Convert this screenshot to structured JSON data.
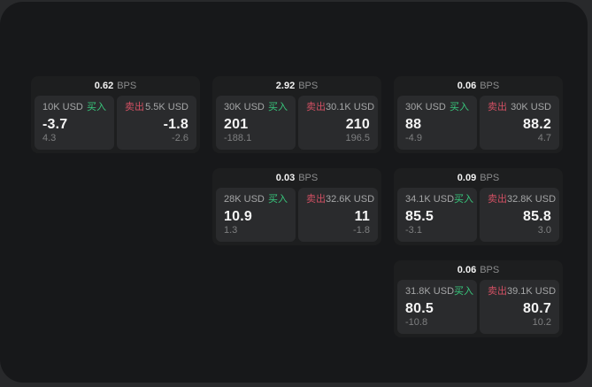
{
  "labels": {
    "bps": "BPS",
    "buy": "买入",
    "sell": "卖出"
  },
  "colors": {
    "page_background": "#28292b",
    "surface_background": "#17181a",
    "card_background": "#1d1e1f",
    "pane_background": "#2a2b2d",
    "buy_green": "#38c77c",
    "sell_red": "#d15063",
    "value_white": "#f4f4f4",
    "label_gray": "#a5a6a7",
    "delta_gray": "#7e7f80"
  },
  "cards": [
    {
      "col": 1,
      "row": 1,
      "bps": "0.62",
      "buy": {
        "amount": "10K USD",
        "value": "-3.7",
        "delta": "4.3"
      },
      "sell": {
        "amount": "5.5K USD",
        "value": "-1.8",
        "delta": "-2.6"
      }
    },
    {
      "col": 2,
      "row": 1,
      "bps": "2.92",
      "buy": {
        "amount": "30K USD",
        "value": "201",
        "delta": "-188.1"
      },
      "sell": {
        "amount": "30.1K USD",
        "value": "210",
        "delta": "196.5"
      }
    },
    {
      "col": 2,
      "row": 2,
      "bps": "0.03",
      "buy": {
        "amount": "28K USD",
        "value": "10.9",
        "delta": "1.3"
      },
      "sell": {
        "amount": "32.6K USD",
        "value": "11",
        "delta": "-1.8"
      }
    },
    {
      "col": 3,
      "row": 1,
      "bps": "0.06",
      "buy": {
        "amount": "30K USD",
        "value": "88",
        "delta": "-4.9"
      },
      "sell": {
        "amount": "30K USD",
        "value": "88.2",
        "delta": "4.7"
      }
    },
    {
      "col": 3,
      "row": 2,
      "bps": "0.09",
      "buy": {
        "amount": "34.1K USD",
        "value": "85.5",
        "delta": "-3.1"
      },
      "sell": {
        "amount": "32.8K USD",
        "value": "85.8",
        "delta": "3.0"
      }
    },
    {
      "col": 3,
      "row": 3,
      "bps": "0.06",
      "buy": {
        "amount": "31.8K USD",
        "value": "80.5",
        "delta": "-10.8"
      },
      "sell": {
        "amount": "39.1K USD",
        "value": "80.7",
        "delta": "10.2"
      }
    }
  ]
}
